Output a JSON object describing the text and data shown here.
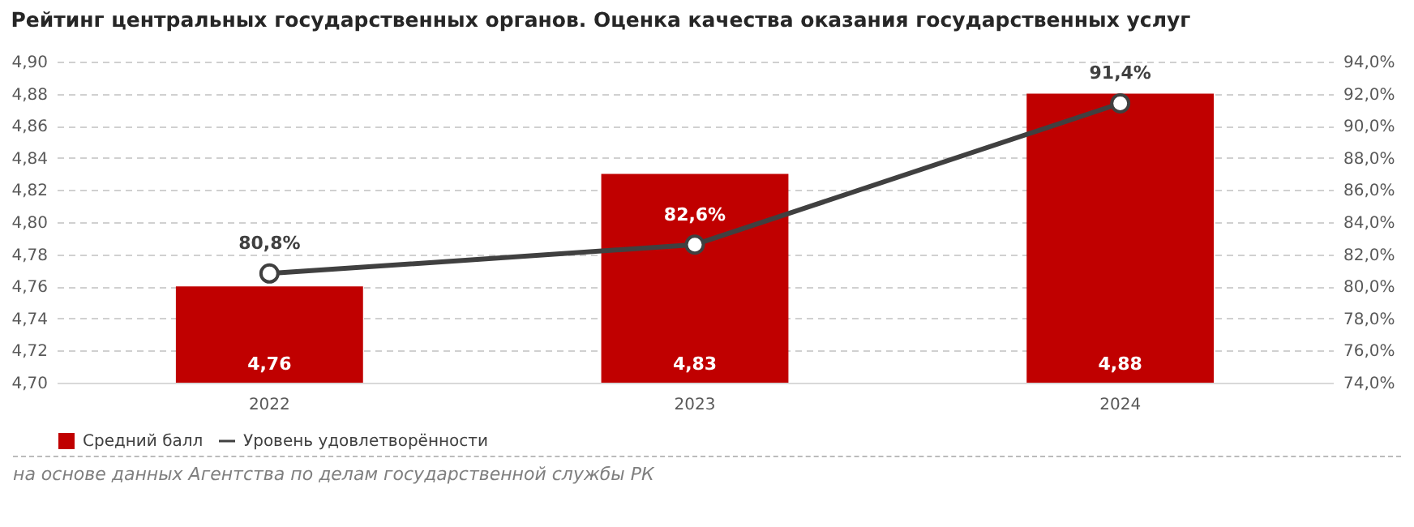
{
  "chart_data": {
    "type": "bar",
    "title": "Рейтинг центральных государственных органов. Оценка качества оказания государственных услуг",
    "categories": [
      "2022",
      "2023",
      "2024"
    ],
    "series": [
      {
        "name": "Средний балл",
        "color": "#c00000",
        "values": [
          4.76,
          4.83,
          4.88
        ],
        "value_labels": [
          "4,76",
          "4,83",
          "4,88"
        ]
      },
      {
        "name": "Уровень удовлетворённости",
        "type": "line",
        "axis": "y2",
        "color": "#404040",
        "values": [
          80.8,
          82.6,
          91.4
        ],
        "value_labels": [
          "80,8%",
          "82,6%",
          "91,4%"
        ],
        "marker": "circle"
      }
    ],
    "ylim": [
      4.7,
      4.9
    ],
    "yticks": [
      {
        "value": 4.7,
        "label": "4,70"
      },
      {
        "value": 4.72,
        "label": "4,72"
      },
      {
        "value": 4.74,
        "label": "4,74"
      },
      {
        "value": 4.76,
        "label": "4,76"
      },
      {
        "value": 4.78,
        "label": "4,78"
      },
      {
        "value": 4.8,
        "label": "4,80"
      },
      {
        "value": 4.82,
        "label": "4,82"
      },
      {
        "value": 4.84,
        "label": "4,84"
      },
      {
        "value": 4.86,
        "label": "4,86"
      },
      {
        "value": 4.88,
        "label": "4,88"
      },
      {
        "value": 4.9,
        "label": "4,90"
      }
    ],
    "y2lim": [
      74,
      94
    ],
    "y2ticks": [
      {
        "value": 74,
        "label": "74,0%"
      },
      {
        "value": 76,
        "label": "76,0%"
      },
      {
        "value": 78,
        "label": "78,0%"
      },
      {
        "value": 80,
        "label": "80,0%"
      },
      {
        "value": 82,
        "label": "82,0%"
      },
      {
        "value": 84,
        "label": "84,0%"
      },
      {
        "value": 86,
        "label": "86,0%"
      },
      {
        "value": 88,
        "label": "88,0%"
      },
      {
        "value": 90,
        "label": "90,0%"
      },
      {
        "value": 92,
        "label": "92,0%"
      },
      {
        "value": 94,
        "label": "94,0%"
      }
    ],
    "grid": "y",
    "legend": "bottom",
    "annotations": [
      "на основе данных Агентства по делам государственной службы РК"
    ]
  }
}
